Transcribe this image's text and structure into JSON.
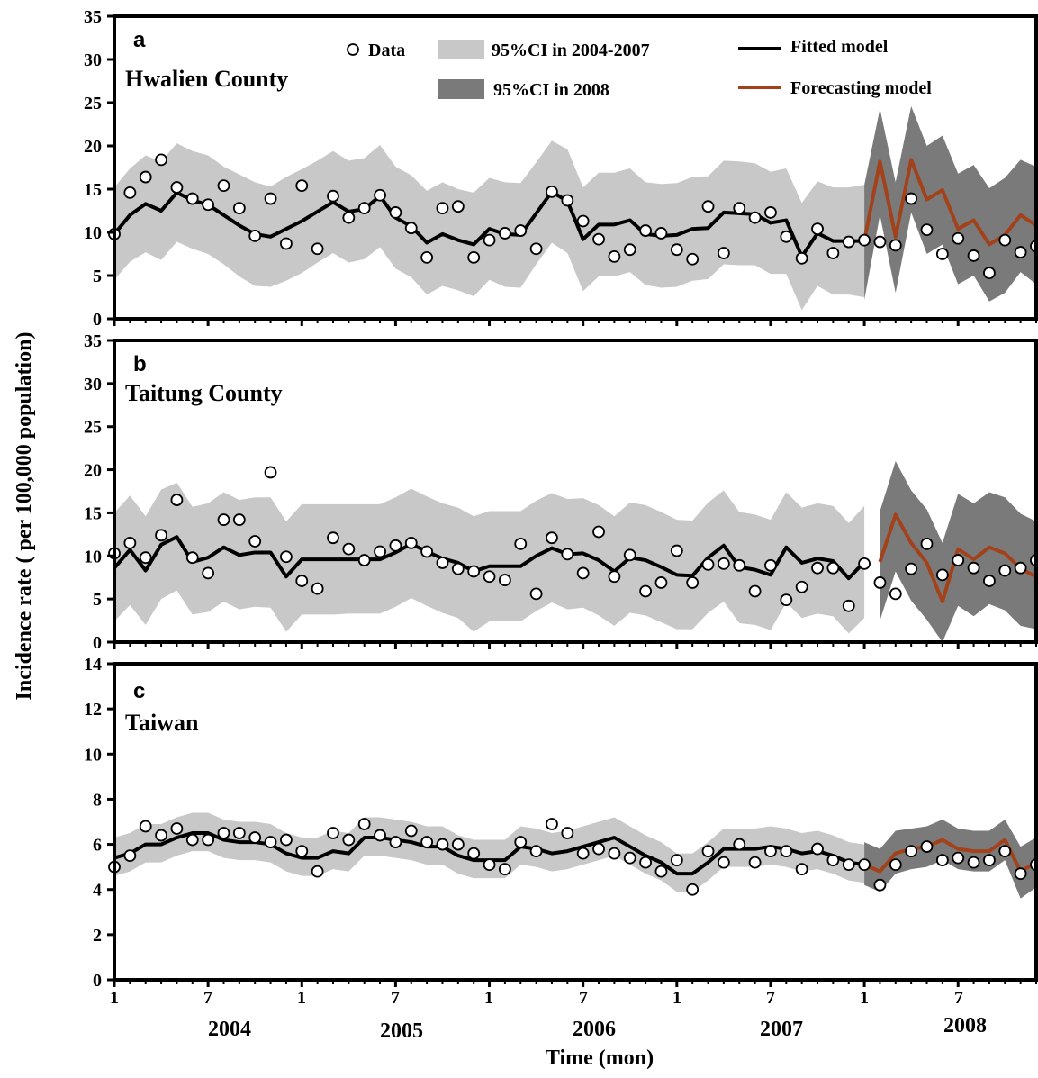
{
  "figure": {
    "y_axis_label": "Incidence rate ( per 100,000 population)",
    "x_axis_label": "Time (mon)",
    "month_ticks": [
      "1",
      "7",
      "1",
      "7",
      "1",
      "7",
      "1",
      "7",
      "1",
      "7"
    ],
    "years": [
      "2004",
      "2005",
      "2006",
      "2007",
      "2008"
    ],
    "legend": {
      "data": "Data",
      "ci_fit": "95%CI in 2004-2007",
      "ci_forecast": "95%CI in 2008",
      "fitted": "Fitted model",
      "forecast": "Forecasting model"
    },
    "colors": {
      "ci_fit": "#c8c8c8",
      "ci_forecast": "#7a7a7a",
      "fitted": "#000000",
      "forecast": "#a3421a",
      "point_fill": "#ffffff"
    }
  },
  "chart_data": [
    {
      "type": "line",
      "panel_letter": "a",
      "region": "Hwalien County",
      "x_unit": "month index (1 = Jan 2004, 60 = Dec 2008)",
      "ylim": [
        0,
        35
      ],
      "yticks": [
        0,
        5,
        10,
        15,
        20,
        25,
        30,
        35
      ],
      "data_points": [
        9.8,
        14.6,
        16.4,
        18.4,
        15.2,
        13.9,
        13.2,
        15.4,
        12.8,
        9.6,
        13.9,
        8.7,
        15.4,
        8.1,
        14.2,
        11.7,
        12.8,
        14.3,
        12.3,
        10.5,
        7.1,
        12.8,
        13,
        7.1,
        9.1,
        9.9,
        10.2,
        8.1,
        14.7,
        13.7,
        11.3,
        9.2,
        7.2,
        8,
        10.2,
        9.9,
        8,
        6.9,
        13,
        7.6,
        12.8,
        11.7,
        12.3,
        9.5,
        7,
        10.4,
        7.6,
        8.9,
        9.1,
        8.9,
        8.5,
        13.9,
        10.3,
        7.5,
        9.3,
        7.3,
        5.3,
        9.1,
        7.7,
        8.4
      ],
      "fitted": [
        9.8,
        12,
        13.3,
        12.5,
        14.6,
        13.7,
        13.2,
        12,
        10.8,
        9.8,
        9.5,
        10.4,
        11.3,
        12.4,
        13.5,
        12.4,
        12.7,
        14.2,
        11.7,
        10.7,
        8.8,
        9.8,
        9.1,
        8.6,
        10.4,
        9.8,
        9.7,
        12.2,
        14.7,
        13.6,
        9.2,
        10.9,
        10.9,
        11.4,
        9.8,
        9.6,
        9.7,
        10.4,
        10.5,
        12.3,
        12.2,
        12.1,
        11.1,
        11.4,
        7.2,
        9.9,
        9,
        9,
        9
      ],
      "ci_fit_lower": [
        4.5,
        6.6,
        7.7,
        6.8,
        8.9,
        8.1,
        7.5,
        6.3,
        4.9,
        3.8,
        3.7,
        4.4,
        5.3,
        6.5,
        7.6,
        6.5,
        6.9,
        8.3,
        5.8,
        4.8,
        2.8,
        3.8,
        3.3,
        2.6,
        4.5,
        3.7,
        3.6,
        6.3,
        8.8,
        7.6,
        3.2,
        4.9,
        4.9,
        5.4,
        3.9,
        3.6,
        3.7,
        4.4,
        4.6,
        6.3,
        6.2,
        6.2,
        5.2,
        5.2,
        1,
        3.8,
        2.8,
        2.8,
        2.5
      ],
      "ci_fit_upper": [
        15.2,
        17.4,
        18.9,
        18.2,
        20.3,
        19.4,
        18.9,
        17.6,
        16.7,
        15.8,
        15.3,
        16.4,
        17.3,
        18.3,
        19.4,
        18.3,
        18.6,
        20.1,
        17.6,
        16.6,
        14.8,
        15.8,
        15,
        14.6,
        16.3,
        15.8,
        15.7,
        18.1,
        20.6,
        19.6,
        15.2,
        16.9,
        16.9,
        17.4,
        15.8,
        15.6,
        15.7,
        16.4,
        16.5,
        18.3,
        18.2,
        18,
        17,
        17.4,
        13.4,
        15.9,
        15.2,
        15.2,
        15.5
      ],
      "forecast": [
        9,
        18.2,
        9.5,
        18.4,
        13.8,
        14.9,
        10.4,
        11.4,
        8.6,
        9.7,
        12,
        10.8
      ],
      "ci_forecast_lower": [
        2.2,
        12,
        3,
        12.3,
        7.5,
        8.6,
        4,
        5,
        2,
        3,
        5.4,
        4
      ],
      "ci_forecast_upper": [
        15.5,
        24.3,
        15.8,
        24.6,
        20,
        21.2,
        16.8,
        17.8,
        15.1,
        16.3,
        18.4,
        17.6
      ]
    },
    {
      "type": "line",
      "panel_letter": "b",
      "region": "Taitung County",
      "x_unit": "month index (1 = Jan 2004, 60 = Dec 2008)",
      "ylim": [
        0,
        35
      ],
      "yticks": [
        0,
        5,
        10,
        15,
        20,
        25,
        30,
        35
      ],
      "data_points": [
        10.3,
        11.5,
        9.8,
        12.4,
        16.5,
        9.8,
        8,
        14.2,
        14.2,
        11.7,
        19.7,
        9.9,
        7.1,
        6.2,
        12.1,
        10.8,
        9.5,
        10.5,
        11.2,
        11.5,
        10.5,
        9.2,
        8.5,
        8.2,
        7.6,
        7.2,
        11.4,
        5.6,
        12.1,
        10.2,
        8,
        12.8,
        7.6,
        10.1,
        5.9,
        6.9,
        10.6,
        6.9,
        9,
        9.1,
        8.9,
        5.9,
        8.9,
        4.9,
        6.4,
        8.6,
        8.6,
        4.2,
        9.1,
        6.9,
        5.6,
        8.5,
        11.4,
        7.8,
        9.5,
        8.6,
        7.1,
        8.3,
        8.6,
        9.5
      ],
      "fitted": [
        8.6,
        10.7,
        8.3,
        11.3,
        12.2,
        9.3,
        9.8,
        11,
        10.1,
        10.4,
        10.4,
        7.6,
        9.6,
        9.6,
        9.6,
        9.6,
        9.6,
        9.6,
        10.4,
        11.4,
        10.5,
        9.7,
        9.2,
        8.2,
        8.8,
        8.8,
        8.8,
        10,
        10.9,
        10.2,
        10.3,
        9.5,
        8.2,
        9.8,
        9.5,
        8.7,
        7.8,
        7.7,
        9.8,
        11.2,
        8.7,
        8.4,
        7.8,
        11,
        9.2,
        9.7,
        9.4,
        7.4,
        9.3
      ],
      "ci_fit_lower": [
        2.4,
        4.3,
        2,
        5,
        6,
        3.2,
        3.5,
        4.7,
        3.8,
        4.1,
        4,
        1.2,
        3.2,
        3.2,
        3.2,
        3.3,
        3.3,
        3.3,
        4.1,
        5.1,
        4.2,
        3.4,
        2.8,
        1.2,
        2.4,
        2.4,
        2.4,
        3.6,
        4.6,
        3.8,
        4,
        3.1,
        1.9,
        3.4,
        3.1,
        2.3,
        1.5,
        1.5,
        3.4,
        4.7,
        2.2,
        2,
        1.4,
        4.6,
        2.8,
        3.3,
        3,
        1,
        2.8
      ],
      "ci_fit_upper": [
        15,
        17,
        14.6,
        17.7,
        18.5,
        15.7,
        16.1,
        17.4,
        16.5,
        16.8,
        16.8,
        14,
        16,
        16,
        16,
        16,
        16,
        16,
        16.8,
        17.8,
        16.9,
        16.1,
        15.6,
        14.6,
        15.2,
        15.2,
        15.2,
        16.4,
        17.3,
        16.6,
        16.7,
        15.9,
        14.6,
        16.2,
        15.9,
        15.1,
        14.2,
        14.1,
        16.2,
        17.6,
        15.1,
        14.8,
        14.2,
        17.4,
        15.6,
        16.1,
        15.8,
        13.8,
        15.8
      ],
      "forecast": [
        9.3,
        14.8,
        11.5,
        9.2,
        4.7,
        10.8,
        9.6,
        11,
        10.3,
        8.5,
        7.6
      ],
      "ci_forecast_lower": [
        2.5,
        8.2,
        4.8,
        2.6,
        0,
        4.2,
        3,
        4.4,
        3.7,
        1.9,
        1.5
      ],
      "ci_forecast_upper": [
        15.2,
        21,
        17.6,
        15.4,
        11.5,
        17.2,
        16.1,
        17.4,
        16.8,
        14.9,
        14
      ]
    },
    {
      "type": "line",
      "panel_letter": "c",
      "region": "Taiwan",
      "x_unit": "month index (1 = Jan 2004, 60 = Dec 2008)",
      "ylim": [
        0,
        14
      ],
      "yticks": [
        0,
        2,
        4,
        6,
        8,
        10,
        12,
        14
      ],
      "data_points": [
        5,
        5.5,
        6.8,
        6.4,
        6.7,
        6.2,
        6.2,
        6.5,
        6.5,
        6.3,
        6.1,
        6.2,
        5.7,
        4.8,
        6.5,
        6.2,
        6.9,
        6.4,
        6.1,
        6.6,
        6.1,
        6.0,
        6.0,
        5.6,
        5.1,
        4.9,
        6.1,
        5.7,
        6.9,
        6.5,
        5.6,
        5.8,
        5.6,
        5.4,
        5.2,
        4.8,
        5.3,
        4.0,
        5.7,
        5.2,
        6.0,
        5.2,
        5.7,
        5.7,
        4.9,
        5.8,
        5.3,
        5.1,
        5.1,
        4.2,
        5.1,
        5.7,
        5.9,
        5.3,
        5.4,
        5.2,
        5.3,
        5.7,
        4.7,
        5.1
      ],
      "fitted": [
        5.4,
        5.6,
        6,
        6,
        6.3,
        6.5,
        6.5,
        6.2,
        6.1,
        6.1,
        6,
        5.6,
        5.4,
        5.4,
        5.7,
        5.6,
        6.3,
        6.3,
        6.2,
        6.1,
        5.9,
        5.9,
        5.5,
        5.3,
        5.3,
        5.3,
        5.9,
        5.8,
        5.6,
        5.7,
        5.9,
        6.1,
        6.3,
        5.9,
        5.5,
        5.2,
        4.7,
        4.7,
        5.2,
        5.8,
        5.8,
        5.8,
        5.9,
        5.8,
        5.6,
        5.7,
        5.5,
        5.2,
        5.1
      ],
      "ci_fit_lower": [
        4.6,
        4.8,
        5.2,
        5.2,
        5.5,
        5.7,
        5.7,
        5.4,
        5.3,
        5.3,
        5.2,
        4.8,
        4.6,
        4.6,
        4.9,
        4.8,
        5.5,
        5.5,
        5.4,
        5.3,
        5.1,
        5.1,
        4.7,
        4.5,
        4.5,
        4.5,
        5.1,
        5,
        4.8,
        4.9,
        5.1,
        5.3,
        5.5,
        5.1,
        4.7,
        4.4,
        3.9,
        3.9,
        4.4,
        5,
        5,
        5,
        5.1,
        5,
        4.8,
        4.9,
        4.7,
        4.4,
        4.3
      ],
      "ci_fit_upper": [
        6.3,
        6.5,
        6.9,
        6.9,
        7.2,
        7.4,
        7.4,
        7.1,
        7,
        7,
        6.9,
        6.5,
        6.3,
        6.3,
        6.6,
        6.5,
        7.2,
        7.2,
        7.1,
        7,
        6.8,
        6.8,
        6.4,
        6.2,
        6.2,
        6.2,
        6.8,
        6.7,
        6.5,
        6.6,
        6.8,
        7,
        7.2,
        6.8,
        6.4,
        6.1,
        5.6,
        5.6,
        6.1,
        6.7,
        6.7,
        6.7,
        6.8,
        6.7,
        6.5,
        6.6,
        6.4,
        6.1,
        6
      ],
      "forecast": [
        5.1,
        4.8,
        5.6,
        5.8,
        5.9,
        6.2,
        5.8,
        5.7,
        5.7,
        6.2,
        4.8,
        5.2
      ],
      "ci_forecast_lower": [
        4.2,
        3.9,
        4.7,
        4.9,
        5,
        5.3,
        4.9,
        4.8,
        4.8,
        5.3,
        3.6,
        4.1
      ],
      "ci_forecast_upper": [
        6.1,
        5.8,
        6.6,
        6.7,
        6.8,
        7.1,
        6.7,
        6.6,
        6.6,
        7.1,
        5.9,
        6.3
      ]
    }
  ]
}
